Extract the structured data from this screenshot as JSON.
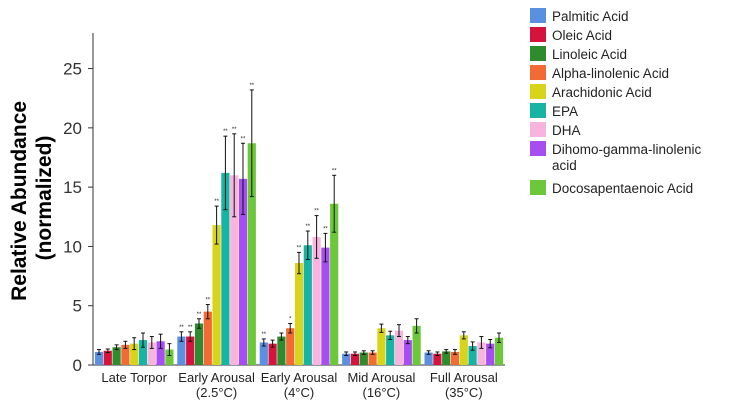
{
  "chart_data": {
    "type": "bar",
    "ylabel": "Relative Abundance (normalized)",
    "ylabel_lines": [
      "Relative Abundance",
      "(normalized)"
    ],
    "xlabel": "",
    "ylim": [
      0,
      28
    ],
    "yticks": [
      0,
      5,
      10,
      15,
      20,
      25
    ],
    "grid": false,
    "legend_position": "top-right",
    "categories": [
      [
        "Late Torpor"
      ],
      [
        "Early Arousal",
        "(2.5°C)"
      ],
      [
        "Early Arousal",
        "(4°C)"
      ],
      [
        "Mid Arousal",
        "(16°C)"
      ],
      [
        "Full Arousal",
        "(35°C)"
      ]
    ],
    "series": [
      {
        "name": "Palmitic Acid",
        "color": "#5b8fe0",
        "values": [
          1.1,
          2.4,
          1.9,
          0.95,
          1.05
        ],
        "err": [
          0.2,
          0.4,
          0.3,
          0.15,
          0.15
        ],
        "sig": [
          "",
          "**",
          "**",
          "",
          ""
        ]
      },
      {
        "name": "Oleic Acid",
        "color": "#d4143c",
        "values": [
          1.2,
          2.4,
          1.8,
          0.95,
          0.95
        ],
        "err": [
          0.15,
          0.4,
          0.3,
          0.15,
          0.15
        ],
        "sig": [
          "",
          "**",
          "",
          "",
          ""
        ]
      },
      {
        "name": "Linoleic Acid",
        "color": "#2e8b2e",
        "values": [
          1.5,
          3.5,
          2.4,
          1.05,
          1.15
        ],
        "err": [
          0.2,
          0.4,
          0.3,
          0.15,
          0.15
        ],
        "sig": [
          "",
          "**",
          "",
          "",
          ""
        ]
      },
      {
        "name": "Alpha-linolenic Acid",
        "color": "#f26b35",
        "values": [
          1.7,
          4.5,
          3.1,
          1.05,
          1.1
        ],
        "err": [
          0.3,
          0.6,
          0.4,
          0.15,
          0.2
        ],
        "sig": [
          "",
          "**",
          "*",
          "",
          ""
        ]
      },
      {
        "name": "Arachidonic Acid",
        "color": "#d8d41c",
        "values": [
          1.8,
          11.8,
          8.6,
          3.1,
          2.5
        ],
        "err": [
          0.5,
          1.6,
          0.9,
          0.35,
          0.3
        ],
        "sig": [
          "",
          "**",
          "**",
          "",
          ""
        ]
      },
      {
        "name": "EPA",
        "color": "#17b3a3",
        "values": [
          2.1,
          16.2,
          10.1,
          2.5,
          1.6
        ],
        "err": [
          0.6,
          3.1,
          1.2,
          0.35,
          0.35
        ],
        "sig": [
          "",
          "**",
          "**",
          "",
          ""
        ]
      },
      {
        "name": "DHA",
        "color": "#f7b5de",
        "values": [
          1.9,
          16.0,
          10.8,
          2.9,
          1.9
        ],
        "err": [
          0.5,
          3.5,
          1.8,
          0.5,
          0.5
        ],
        "sig": [
          "",
          "**",
          "**",
          "",
          ""
        ]
      },
      {
        "name": "Dihomo-gamma-linolenic acid",
        "color": "#a64ef0",
        "values": [
          2.0,
          15.7,
          9.9,
          2.1,
          1.8
        ],
        "err": [
          0.6,
          3.0,
          1.2,
          0.3,
          0.35
        ],
        "sig": [
          "",
          "**",
          "**",
          "",
          ""
        ]
      },
      {
        "name": "Docosapentaenoic Acid",
        "color": "#6cc83a",
        "values": [
          1.3,
          18.7,
          13.6,
          3.3,
          2.3
        ],
        "err": [
          0.5,
          4.5,
          2.4,
          0.6,
          0.4
        ],
        "sig": [
          "",
          "**",
          "**",
          "",
          ""
        ]
      }
    ]
  }
}
